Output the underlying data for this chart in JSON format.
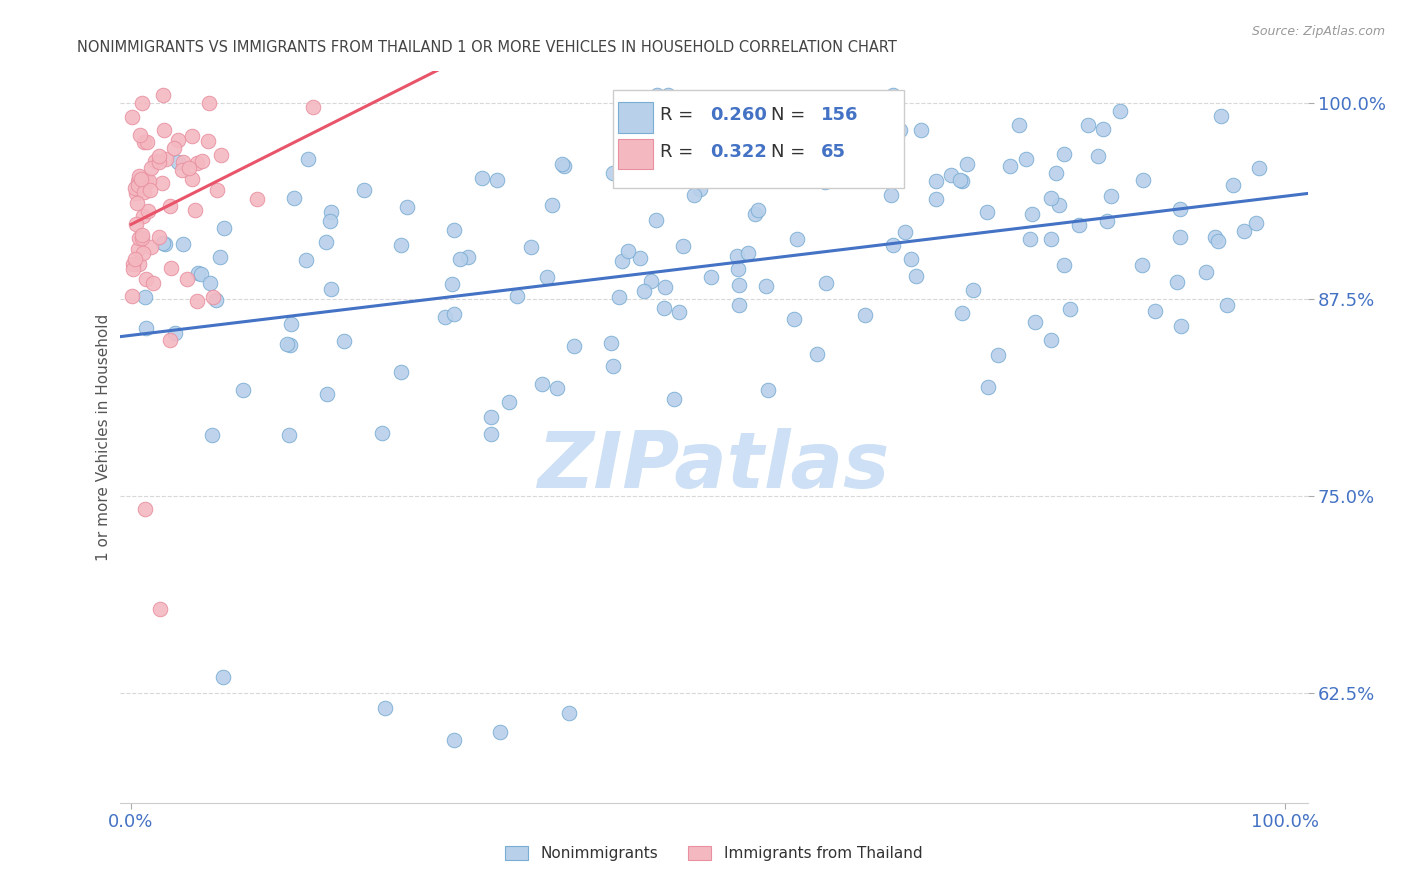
{
  "title": "NONIMMIGRANTS VS IMMIGRANTS FROM THAILAND 1 OR MORE VEHICLES IN HOUSEHOLD CORRELATION CHART",
  "source": "Source: ZipAtlas.com",
  "ylabel": "1 or more Vehicles in Household",
  "ytick_values": [
    0.625,
    0.75,
    0.875,
    1.0
  ],
  "ytick_labels": [
    "62.5%",
    "75.0%",
    "87.5%",
    "100.0%"
  ],
  "xtick_values": [
    0.0,
    1.0
  ],
  "xtick_labels": [
    "0.0%",
    "100.0%"
  ],
  "blue_line_color": "#4472c4",
  "pink_line_color": "#e8556a",
  "R_blue": 0.26,
  "R_pink": 0.322,
  "N_blue": 156,
  "N_pink": 65,
  "dot_color_blue": "#b8d0ea",
  "dot_color_pink": "#f4b8c1",
  "dot_edge_blue": "#7aadd4",
  "dot_edge_pink": "#e890a0",
  "background_color": "#ffffff",
  "watermark_text": "ZIPatlas",
  "watermark_color": "#cde0f5",
  "title_color": "#444444",
  "axis_label_color": "#4472c4",
  "legend_R_N_color": "#4472c4",
  "legend_label_color": "#333333",
  "grid_color": "#d8d8d8",
  "ylim_min": 0.555,
  "ylim_max": 1.02,
  "xlim_min": -0.01,
  "xlim_max": 1.02,
  "blue_line_x": [
    0.0,
    1.0
  ],
  "blue_line_y": [
    0.838,
    0.925
  ],
  "pink_line_x": [
    0.0,
    0.42
  ],
  "pink_line_y": [
    0.88,
    1.005
  ]
}
